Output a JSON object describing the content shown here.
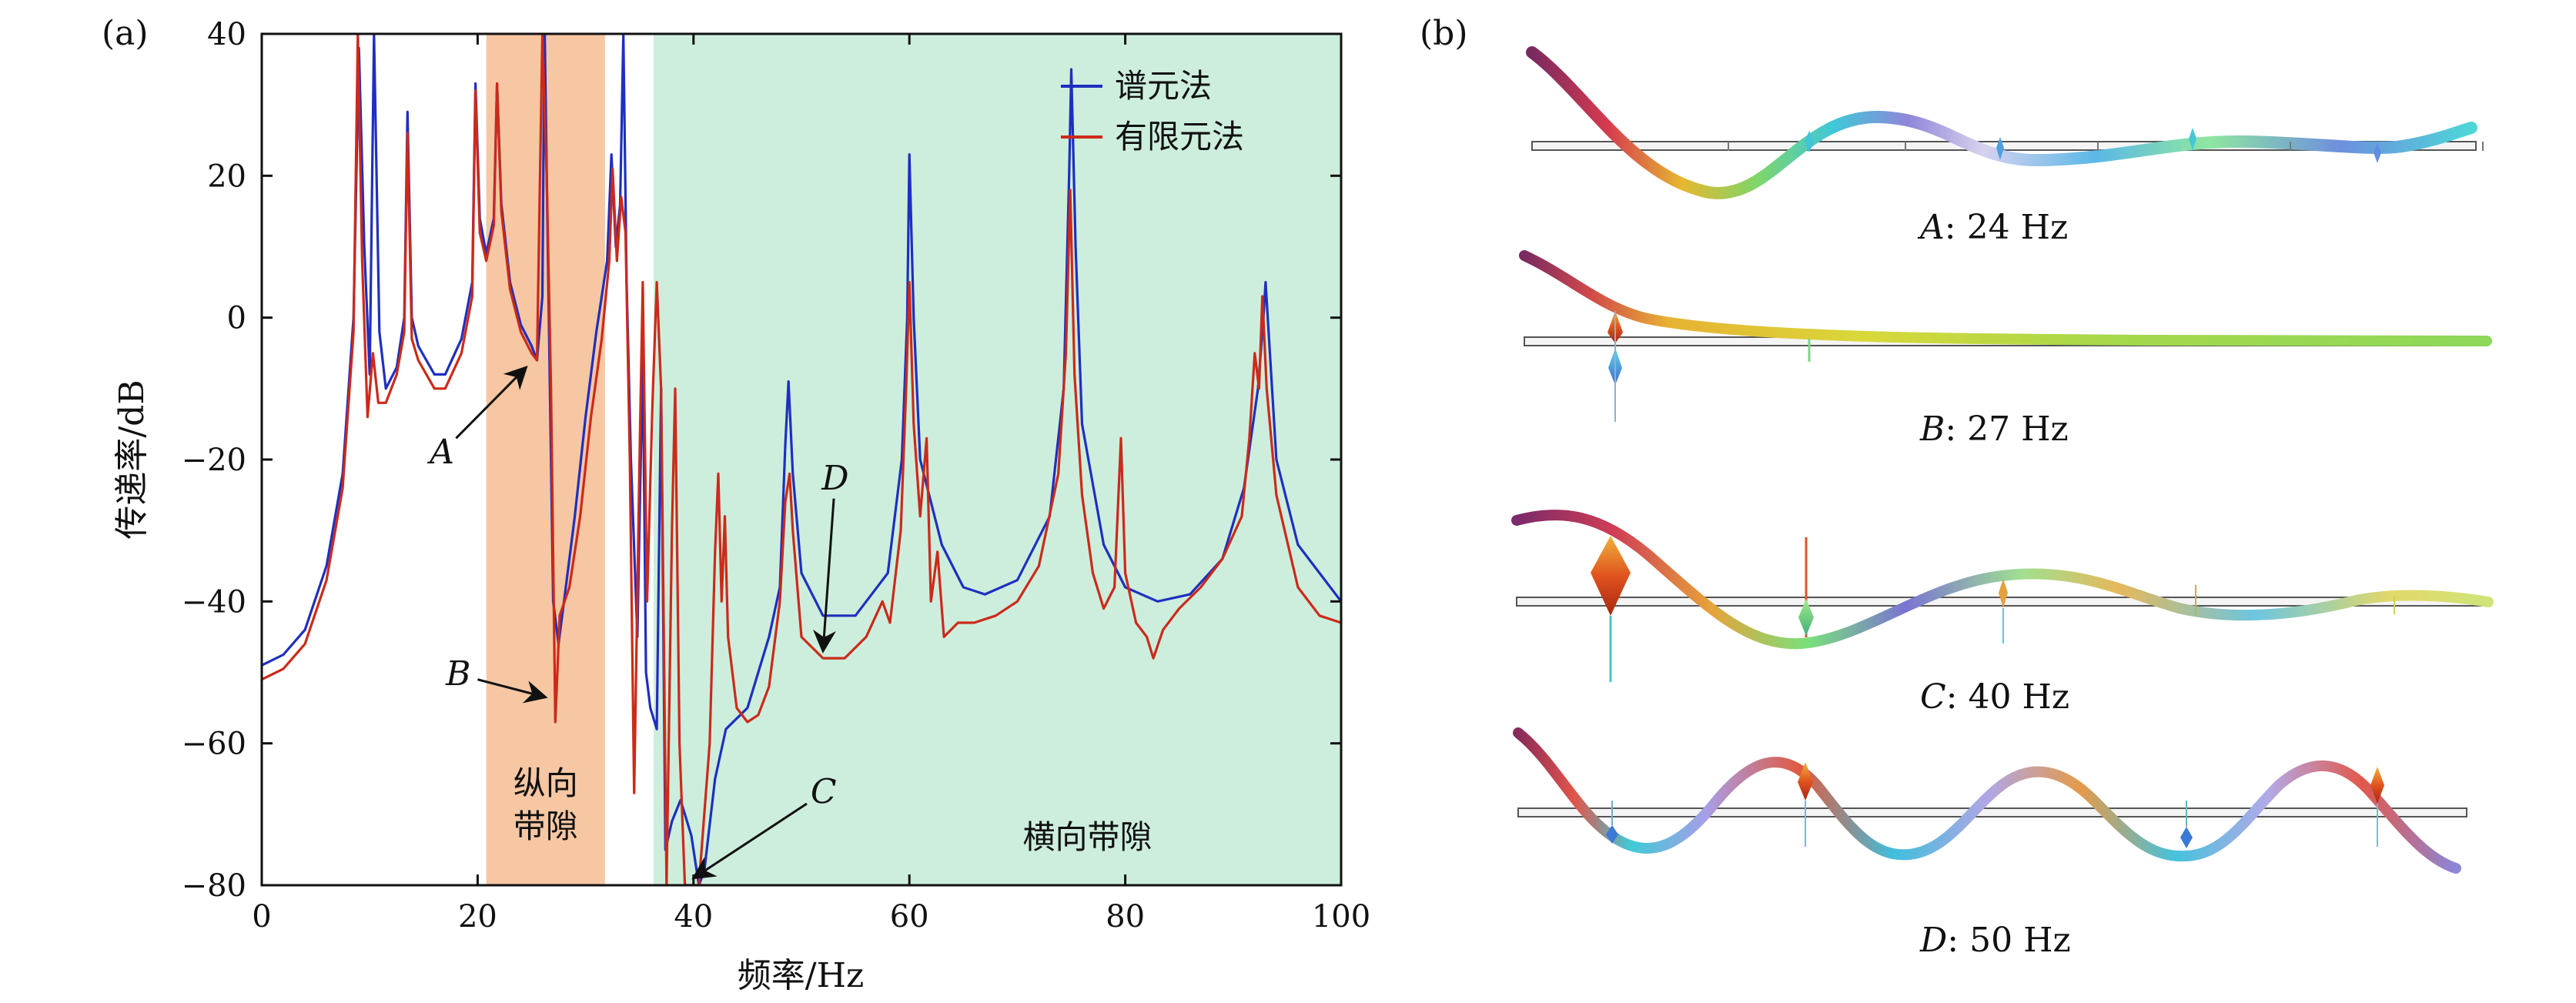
{
  "panel_a_label": "(a)",
  "panel_b_label": "(b)",
  "chart_data": {
    "type": "line",
    "xlabel": "频率/Hz",
    "ylabel": "传递率/dB",
    "xlim": [
      0,
      100
    ],
    "ylim": [
      -80,
      40
    ],
    "xticks": [
      0,
      20,
      40,
      60,
      80,
      100
    ],
    "yticks": [
      40,
      20,
      0,
      -20,
      -40,
      -60,
      -80
    ],
    "ytick_labels": [
      "40",
      "20",
      "0",
      "−20",
      "−40",
      "−60",
      "−80"
    ],
    "legend": [
      "谱元法",
      "有限元法"
    ],
    "legend_position": "top-right",
    "series_colors": [
      "#1f2fbf",
      "#cc2a1a"
    ],
    "regions": [
      {
        "name": "纵向带隙",
        "label_lines": [
          "纵向",
          "带隙"
        ],
        "x": [
          20.8,
          31.8
        ],
        "color": "#f6c7a2"
      },
      {
        "name": "横向带隙",
        "label_lines": [
          "横向带隙"
        ],
        "x": [
          36.3,
          100
        ],
        "color": "#cdeedd"
      }
    ],
    "annotations": [
      {
        "label": "A",
        "tail": [
          18.0,
          -17.0
        ],
        "head": [
          24.5,
          -7.0
        ]
      },
      {
        "label": "B",
        "tail": [
          20.0,
          -51.0
        ],
        "head": [
          26.3,
          -53.5
        ]
      },
      {
        "label": "C",
        "tail": [
          50.5,
          -68.5
        ],
        "head": [
          40.0,
          -79.0
        ]
      },
      {
        "label": "D",
        "tail": [
          53.0,
          -25.5
        ],
        "head": [
          52.0,
          -47.0
        ]
      }
    ],
    "series": [
      {
        "name": "谱元法",
        "color": "#1f2fbf",
        "points": [
          [
            0,
            -49
          ],
          [
            2,
            -47.5
          ],
          [
            4,
            -44
          ],
          [
            6,
            -35
          ],
          [
            7.5,
            -22
          ],
          [
            8.5,
            0
          ],
          [
            9.0,
            38
          ],
          [
            9.5,
            10
          ],
          [
            10,
            -8
          ],
          [
            10.4,
            40
          ],
          [
            10.9,
            -2
          ],
          [
            11.5,
            -10
          ],
          [
            12.5,
            -7
          ],
          [
            13.2,
            0
          ],
          [
            13.5,
            29
          ],
          [
            13.9,
            0
          ],
          [
            14.5,
            -4
          ],
          [
            16,
            -8
          ],
          [
            17,
            -8
          ],
          [
            18.5,
            -3
          ],
          [
            19.5,
            5
          ],
          [
            19.8,
            33
          ],
          [
            20.2,
            14
          ],
          [
            20.8,
            9
          ],
          [
            21.5,
            14
          ],
          [
            21.8,
            33
          ],
          [
            22.2,
            16
          ],
          [
            23,
            5
          ],
          [
            24,
            -1
          ],
          [
            25,
            -4
          ],
          [
            25.5,
            -6
          ],
          [
            26,
            3
          ],
          [
            26.2,
            42
          ],
          [
            26.5,
            10
          ],
          [
            27,
            -40
          ],
          [
            27.5,
            -46
          ],
          [
            28,
            -40
          ],
          [
            29,
            -28
          ],
          [
            30,
            -14
          ],
          [
            31,
            -2
          ],
          [
            32,
            8
          ],
          [
            32.4,
            23
          ],
          [
            32.8,
            10
          ],
          [
            33.2,
            16
          ],
          [
            33.5,
            40
          ],
          [
            33.8,
            5
          ],
          [
            34.2,
            -20
          ],
          [
            34.8,
            -45
          ],
          [
            35.3,
            -5
          ],
          [
            35.6,
            -50
          ],
          [
            36,
            -55
          ],
          [
            36.6,
            -58
          ],
          [
            37.0,
            -10
          ],
          [
            37.4,
            -75
          ],
          [
            38,
            -71
          ],
          [
            38.8,
            -68
          ],
          [
            39.8,
            -73
          ],
          [
            40.5,
            -80
          ],
          [
            41,
            -78
          ],
          [
            42,
            -65
          ],
          [
            43,
            -58
          ],
          [
            45,
            -55
          ],
          [
            47,
            -45
          ],
          [
            48,
            -38
          ],
          [
            48.5,
            -18
          ],
          [
            48.8,
            -9
          ],
          [
            49.2,
            -22
          ],
          [
            50,
            -36
          ],
          [
            52,
            -42
          ],
          [
            55,
            -42
          ],
          [
            58,
            -36
          ],
          [
            59.3,
            -20
          ],
          [
            59.8,
            0
          ],
          [
            60.0,
            23
          ],
          [
            60.4,
            0
          ],
          [
            61,
            -20
          ],
          [
            63,
            -32
          ],
          [
            65,
            -38
          ],
          [
            67,
            -39
          ],
          [
            70,
            -37
          ],
          [
            73,
            -28
          ],
          [
            74.3,
            -10
          ],
          [
            74.8,
            20
          ],
          [
            75.0,
            35
          ],
          [
            75.4,
            10
          ],
          [
            76,
            -15
          ],
          [
            78,
            -32
          ],
          [
            80,
            -38
          ],
          [
            83,
            -40
          ],
          [
            86,
            -39
          ],
          [
            89,
            -34
          ],
          [
            91,
            -24
          ],
          [
            92.3,
            -10
          ],
          [
            92.8,
            0
          ],
          [
            93.0,
            5
          ],
          [
            93.4,
            -5
          ],
          [
            94,
            -20
          ],
          [
            96,
            -32
          ],
          [
            100,
            -40
          ]
        ]
      },
      {
        "name": "有限元法",
        "color": "#cc2a1a",
        "points": [
          [
            0,
            -51
          ],
          [
            2,
            -49.5
          ],
          [
            4,
            -46
          ],
          [
            6,
            -37
          ],
          [
            7.5,
            -24
          ],
          [
            8.5,
            -2
          ],
          [
            8.9,
            40
          ],
          [
            9.3,
            8
          ],
          [
            9.8,
            -14
          ],
          [
            10.3,
            -5
          ],
          [
            10.8,
            -12
          ],
          [
            11.5,
            -12
          ],
          [
            12.5,
            -8
          ],
          [
            13.2,
            -2
          ],
          [
            13.5,
            26
          ],
          [
            13.9,
            -3
          ],
          [
            14.5,
            -6
          ],
          [
            16,
            -10
          ],
          [
            17,
            -10
          ],
          [
            18.5,
            -5
          ],
          [
            19.5,
            3
          ],
          [
            19.8,
            32
          ],
          [
            20.2,
            12
          ],
          [
            20.8,
            8
          ],
          [
            21.5,
            13
          ],
          [
            21.8,
            33
          ],
          [
            22.2,
            15
          ],
          [
            23,
            4
          ],
          [
            24,
            -2
          ],
          [
            25,
            -5
          ],
          [
            25.5,
            -6
          ],
          [
            26.0,
            40
          ],
          [
            26.4,
            20
          ],
          [
            26.8,
            -10
          ],
          [
            27.2,
            -57
          ],
          [
            27.6,
            -42
          ],
          [
            28.5,
            -38
          ],
          [
            29.5,
            -28
          ],
          [
            30.5,
            -14
          ],
          [
            31.5,
            -3
          ],
          [
            32.2,
            8
          ],
          [
            32.5,
            21
          ],
          [
            32.9,
            8
          ],
          [
            33.3,
            17
          ],
          [
            33.7,
            12
          ],
          [
            34.1,
            -20
          ],
          [
            34.5,
            -67
          ],
          [
            35,
            -20
          ],
          [
            35.3,
            5
          ],
          [
            35.7,
            -40
          ],
          [
            36.2,
            -12
          ],
          [
            36.6,
            5
          ],
          [
            37,
            -10
          ],
          [
            37.5,
            -80
          ],
          [
            38,
            -30
          ],
          [
            38.3,
            -10
          ],
          [
            38.7,
            -60
          ],
          [
            39.2,
            -80
          ],
          [
            40.5,
            -80
          ],
          [
            41.5,
            -60
          ],
          [
            42.0,
            -33
          ],
          [
            42.3,
            -22
          ],
          [
            42.6,
            -40
          ],
          [
            42.9,
            -28
          ],
          [
            43.2,
            -45
          ],
          [
            44,
            -55
          ],
          [
            45,
            -57
          ],
          [
            46,
            -56
          ],
          [
            47,
            -52
          ],
          [
            48,
            -40
          ],
          [
            48.5,
            -26
          ],
          [
            48.9,
            -22
          ],
          [
            49.2,
            -30
          ],
          [
            50,
            -45
          ],
          [
            52,
            -48
          ],
          [
            54,
            -48
          ],
          [
            56,
            -45
          ],
          [
            57.5,
            -40
          ],
          [
            58.2,
            -43
          ],
          [
            59.2,
            -30
          ],
          [
            59.7,
            -10
          ],
          [
            60.0,
            5
          ],
          [
            60.4,
            -15
          ],
          [
            61,
            -28
          ],
          [
            61.6,
            -17
          ],
          [
            62,
            -40
          ],
          [
            62.6,
            -33
          ],
          [
            63.2,
            -45
          ],
          [
            64.5,
            -43
          ],
          [
            66,
            -43
          ],
          [
            68,
            -42
          ],
          [
            70,
            -40
          ],
          [
            72,
            -35
          ],
          [
            73.8,
            -22
          ],
          [
            74.5,
            -5
          ],
          [
            74.9,
            18
          ],
          [
            75.3,
            -8
          ],
          [
            76,
            -25
          ],
          [
            77,
            -36
          ],
          [
            78,
            -41
          ],
          [
            79,
            -38
          ],
          [
            79.6,
            -17
          ],
          [
            80,
            -36
          ],
          [
            81,
            -43
          ],
          [
            82,
            -45
          ],
          [
            82.6,
            -48
          ],
          [
            83.5,
            -44
          ],
          [
            85,
            -41
          ],
          [
            87,
            -38
          ],
          [
            89,
            -34
          ],
          [
            90.8,
            -28
          ],
          [
            91.5,
            -17
          ],
          [
            92.0,
            -5
          ],
          [
            92.4,
            -10
          ],
          [
            92.7,
            3
          ],
          [
            93.1,
            -10
          ],
          [
            94,
            -25
          ],
          [
            96,
            -38
          ],
          [
            98,
            -42
          ],
          [
            100,
            -43
          ]
        ]
      }
    ]
  },
  "modes": [
    {
      "label": "A",
      "caption_value": ": 24 Hz"
    },
    {
      "label": "B",
      "caption_value": ": 27 Hz"
    },
    {
      "label": "C",
      "caption_value": ": 40 Hz"
    },
    {
      "label": "D",
      "caption_value": ": 50 Hz"
    }
  ]
}
